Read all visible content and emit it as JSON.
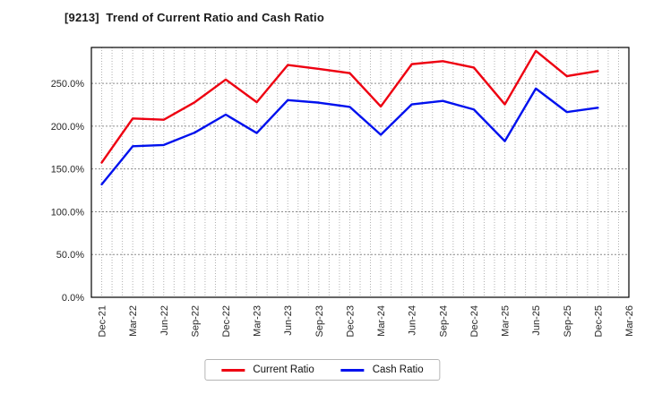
{
  "title": "[9213]  Trend of Current Ratio and Cash Ratio",
  "legend": {
    "items": [
      {
        "label": "Current Ratio",
        "color": "#ee0011"
      },
      {
        "label": "Cash Ratio",
        "color": "#0011ee"
      }
    ]
  },
  "chart_data": {
    "type": "line",
    "title": "[9213]  Trend of Current Ratio and Cash Ratio",
    "x_tick_labels": [
      "Dec-21",
      "Mar-22",
      "Jun-22",
      "Sep-22",
      "Dec-22",
      "Mar-23",
      "Jun-23",
      "Sep-23",
      "Dec-23",
      "Mar-24",
      "Jun-24",
      "Sep-24",
      "Dec-24",
      "Mar-25",
      "Jun-25",
      "Sep-25",
      "Dec-25",
      "Mar-26"
    ],
    "series": [
      {
        "name": "Current Ratio",
        "color": "#ee0011",
        "values": [
          157.5,
          209,
          207.5,
          228,
          254.5,
          228,
          271.5,
          267,
          262,
          223,
          272.5,
          276,
          268.5,
          225.5,
          288,
          258.5,
          264.5
        ]
      },
      {
        "name": "Cash Ratio",
        "color": "#0011ee",
        "values": [
          132,
          176.5,
          178,
          192.5,
          213.5,
          192,
          230.5,
          227.5,
          222.5,
          190,
          225.5,
          229.5,
          219.5,
          182.5,
          244,
          216.5,
          221.5
        ]
      }
    ],
    "y_ticks": [
      0,
      50,
      100,
      150,
      200,
      250
    ],
    "y_tick_suffix": "%",
    "y_tick_decimals": 1,
    "ylim": [
      0,
      292
    ],
    "x_months_total": 52,
    "x_first_tick_month": 1,
    "x_months_per_tick": 3,
    "grid": true,
    "legend_position": "bottom",
    "note_last_tick_has_no_data": "Mar-26"
  }
}
